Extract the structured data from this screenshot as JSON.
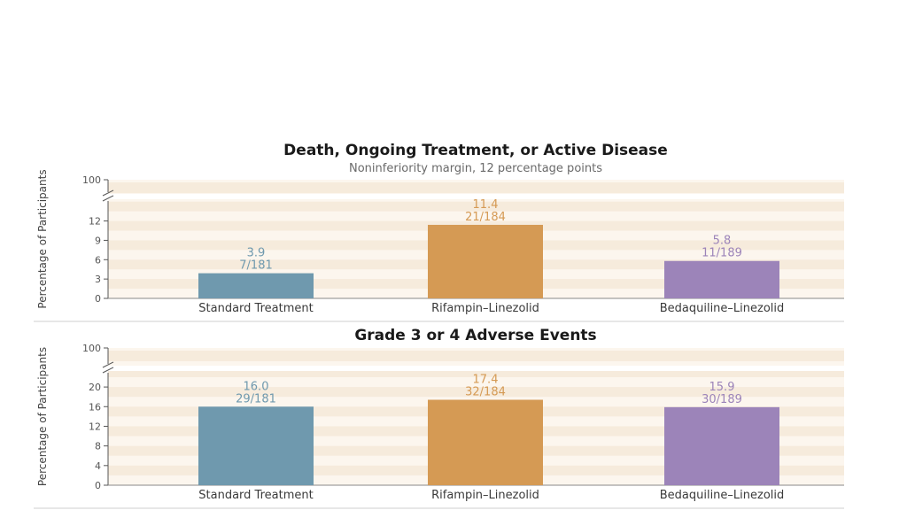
{
  "colors": {
    "standard": "#6f99ae",
    "rifampin": "#d59a54",
    "bedaquiline": "#9c84b9",
    "stripe_light": "#fcf6ee",
    "stripe_dark": "#f6ebdc"
  },
  "chart_data": [
    {
      "type": "bar",
      "title": "Death, Ongoing Treatment, or Active Disease",
      "subtitle": "Noninferiority margin, 12 percentage points",
      "ylabel": "Percentage of Participants",
      "yticks": [
        0,
        3,
        6,
        9,
        12
      ],
      "ytick_top": 100,
      "ylim": [
        0,
        14
      ],
      "axis_break": true,
      "categories": [
        "Standard Treatment",
        "Rifampin–Linezolid",
        "Bedaquiline–Linezolid"
      ],
      "values": [
        3.9,
        11.4,
        5.8
      ],
      "value_labels": [
        "3.9",
        "11.4",
        "5.8"
      ],
      "fractions": [
        "7/181",
        "21/184",
        "11/189"
      ],
      "colors": [
        "#6f99ae",
        "#d59a54",
        "#9c84b9"
      ]
    },
    {
      "type": "bar",
      "title": "Grade 3 or 4 Adverse Events",
      "subtitle": "",
      "ylabel": "Percentage of Participants",
      "yticks": [
        0,
        4,
        8,
        12,
        16,
        20
      ],
      "ytick_top": 100,
      "ylim": [
        0,
        22
      ],
      "axis_break": true,
      "categories": [
        "Standard Treatment",
        "Rifampin–Linezolid",
        "Bedaquiline–Linezolid"
      ],
      "values": [
        16.0,
        17.4,
        15.9
      ],
      "value_labels": [
        "16.0",
        "17.4",
        "15.9"
      ],
      "fractions": [
        "29/181",
        "32/184",
        "30/189"
      ],
      "colors": [
        "#6f99ae",
        "#d59a54",
        "#9c84b9"
      ]
    }
  ]
}
